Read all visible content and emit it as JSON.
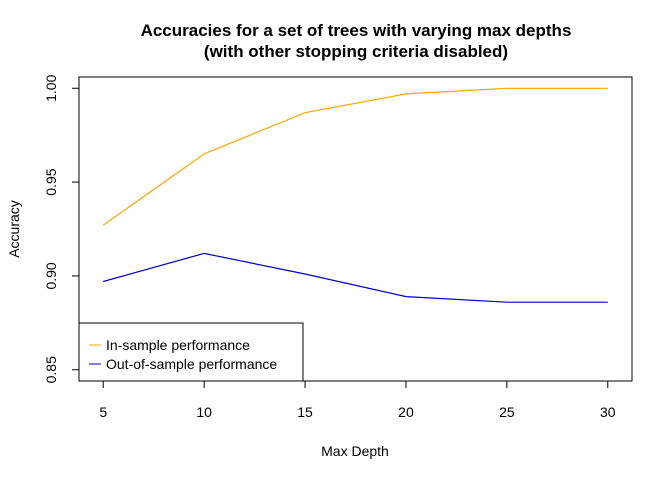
{
  "chart_data": {
    "type": "line",
    "title": [
      "Accuracies for a set of trees with varying max depths",
      "(with other stopping criteria disabled)"
    ],
    "xlabel": "Max Depth",
    "ylabel": "Accuracy",
    "x": [
      5,
      10,
      15,
      20,
      25,
      30
    ],
    "xlim": [
      3.8,
      31.2
    ],
    "ylim": [
      0.844,
      1.006
    ],
    "xticks": [
      5,
      10,
      15,
      20,
      25,
      30
    ],
    "xtick_labels": [
      "5",
      "10",
      "15",
      "20",
      "25",
      "30"
    ],
    "yticks": [
      0.85,
      0.9,
      0.95,
      1.0
    ],
    "ytick_labels": [
      "0.85",
      "0.90",
      "0.95",
      "1.00"
    ],
    "grid": false,
    "legend_position": "bottom-left",
    "series": [
      {
        "name": "In-sample performance",
        "color": "#FFA500",
        "values": [
          0.927,
          0.965,
          0.987,
          0.997,
          1.0,
          1.0
        ]
      },
      {
        "name": "Out-of-sample performance",
        "color": "#0000CD",
        "values": [
          0.897,
          0.912,
          0.901,
          0.889,
          0.886,
          0.886
        ]
      }
    ]
  }
}
